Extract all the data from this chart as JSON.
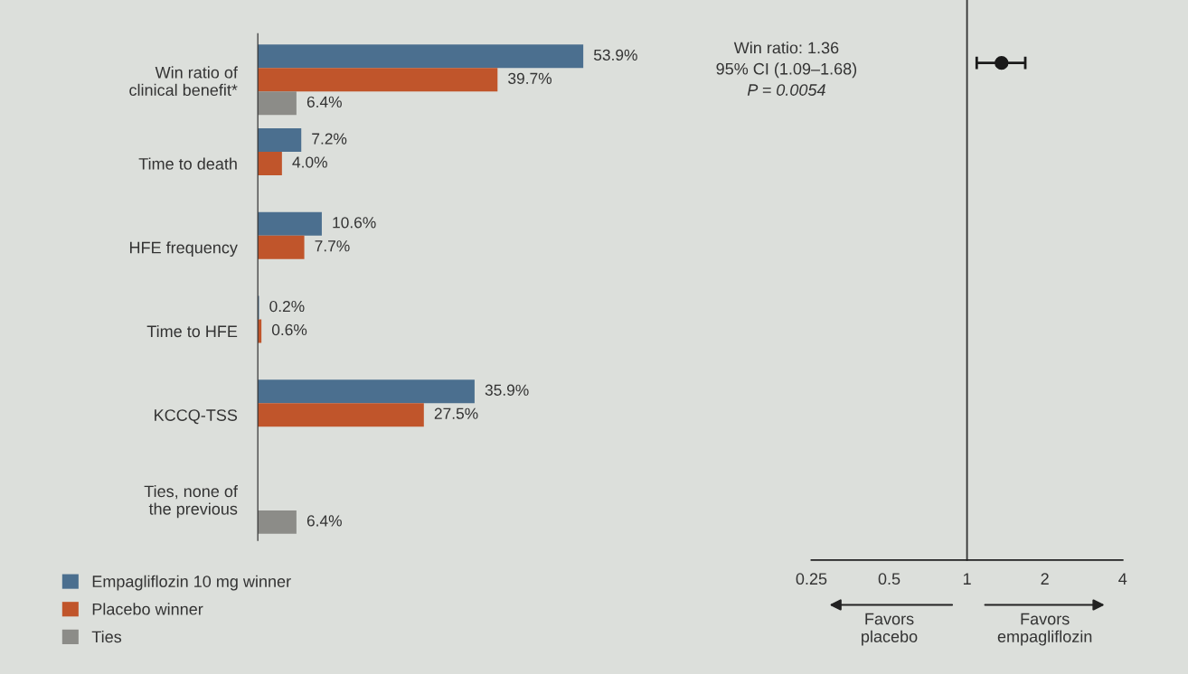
{
  "chart_data": [
    {
      "type": "bar",
      "orientation": "horizontal",
      "data_labels": true,
      "legend": "bottom left",
      "categories": [
        "Win ratio of\nclinical benefit*",
        "Time to death",
        "HFE frequency",
        "Time to HFE",
        "KCCQ-TSS",
        "Ties, none of\nthe previous"
      ],
      "series": [
        {
          "name": "Empagliflozin 10 mg winner",
          "color": "#4b6f8f",
          "values": [
            53.9,
            7.2,
            10.6,
            0.2,
            35.9,
            null
          ],
          "value_labels": [
            "53.9%",
            "7.2%",
            "10.6%",
            "0.2%",
            "35.9%",
            null
          ]
        },
        {
          "name": "Placebo winner",
          "color": "#c0552b",
          "values": [
            39.7,
            4.0,
            7.7,
            0.6,
            27.5,
            null
          ],
          "value_labels": [
            "39.7%",
            "4.0%",
            "7.7%",
            "0.6%",
            "27.5%",
            null
          ]
        },
        {
          "name": "Ties",
          "color": "#8c8c88",
          "values": [
            6.4,
            null,
            null,
            null,
            null,
            6.4
          ],
          "value_labels": [
            "6.4%",
            null,
            null,
            null,
            null,
            "6.4%"
          ]
        }
      ]
    },
    {
      "type": "scatter",
      "orientation": "horizontal",
      "log": "x",
      "marker": "circle",
      "tick_labels": "x",
      "categories": [
        null
      ],
      "xlim": [
        0.25,
        4
      ],
      "xticks": [
        0.25,
        0.5,
        1,
        2,
        4
      ],
      "series": [
        {
          "color": "#1a1a1a",
          "values": [
            1.36
          ],
          "errors": [
            [
              1.09,
              1.68
            ]
          ]
        }
      ],
      "ref_lines": [
        {
          "axis": "x",
          "value": 1,
          "color": "#333333"
        }
      ],
      "annotations": [
        "Win ratio: 1.36",
        "95% CI (1.09–1.68)",
        "P = 0.0054",
        "Favors\nplacebo",
        "Favors\nempagliflozin"
      ]
    }
  ]
}
